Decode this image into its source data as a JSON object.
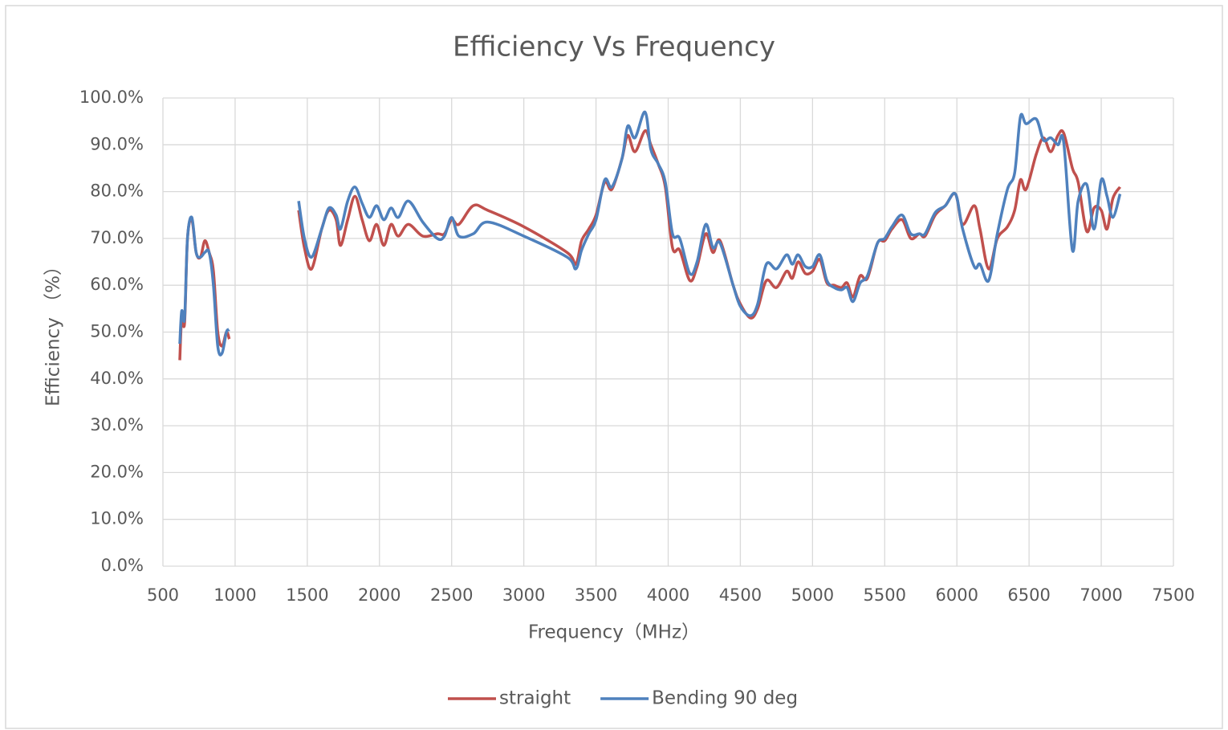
{
  "chart_data": {
    "type": "line",
    "title": "Efficiency Vs Frequency",
    "x_label": "Frequency（MHz）",
    "y_label": "Efficiency （%）",
    "xlim": [
      500,
      7500
    ],
    "xticks": [
      500,
      1000,
      1500,
      2000,
      2500,
      3000,
      3500,
      4000,
      4500,
      5000,
      5500,
      6000,
      6500,
      7000,
      7500
    ],
    "ylim": [
      0,
      100
    ],
    "yticks": [
      {
        "value": 0,
        "label": "0.0%"
      },
      {
        "value": 10,
        "label": "10.0%"
      },
      {
        "value": 20,
        "label": "20.0%"
      },
      {
        "value": 30,
        "label": "30.0%"
      },
      {
        "value": 40,
        "label": "40.0%"
      },
      {
        "value": 50,
        "label": "50.0%"
      },
      {
        "value": 60,
        "label": "60.0%"
      },
      {
        "value": 70,
        "label": "70.0%"
      },
      {
        "value": 80,
        "label": "80.0%"
      },
      {
        "value": 90,
        "label": "90.0%"
      },
      {
        "value": 100,
        "label": "100.0%"
      }
    ],
    "grid": true,
    "legend": "bottom",
    "x": [
      617,
      630,
      650,
      670,
      700,
      730,
      760,
      790,
      820,
      850,
      880,
      910,
      940,
      960,
      null,
      1440,
      1480,
      1530,
      1600,
      1650,
      1700,
      1730,
      1780,
      1830,
      1880,
      1930,
      1980,
      2030,
      2080,
      2130,
      2200,
      2300,
      2400,
      2450,
      2500,
      2550,
      2650,
      2750,
      3000,
      3300,
      3360,
      3400,
      3450,
      3500,
      3560,
      3610,
      3680,
      3720,
      3770,
      3840,
      3880,
      3930,
      3980,
      4030,
      4080,
      4150,
      4200,
      4260,
      4310,
      4360,
      4450,
      4500,
      4570,
      4620,
      4680,
      4750,
      4820,
      4860,
      4900,
      4950,
      5000,
      5050,
      5100,
      5150,
      5200,
      5240,
      5280,
      5330,
      5380,
      5450,
      5500,
      5550,
      5620,
      5680,
      5740,
      5780,
      5850,
      5920,
      5990,
      6040,
      6120,
      6160,
      6220,
      6280,
      6350,
      6400,
      6440,
      6480,
      6550,
      6600,
      6650,
      6700,
      6740,
      6800,
      6840,
      6900,
      6950,
      7000,
      7040,
      7080,
      7130
    ],
    "series": [
      {
        "name": "straight",
        "color": "#c0504d",
        "values": [
          44,
          53,
          52,
          70,
          74,
          67,
          66,
          69.5,
          67,
          63,
          50,
          47,
          50,
          48.5,
          null,
          76,
          68,
          63.5,
          72,
          76,
          74,
          68.5,
          74,
          79,
          74,
          69.5,
          73,
          68.5,
          73,
          70.5,
          73,
          70.5,
          71,
          71,
          74,
          73,
          77,
          76,
          72.5,
          67,
          64.5,
          69.5,
          72,
          75,
          82,
          80.5,
          87,
          92,
          88.5,
          93,
          90,
          86,
          81,
          68,
          67.5,
          61,
          64,
          71,
          67,
          69.5,
          60,
          56,
          53,
          55,
          61,
          59.5,
          63,
          61.5,
          65,
          62.5,
          63,
          65.5,
          60.5,
          60,
          59.5,
          60.5,
          57.5,
          62,
          61.5,
          69,
          69.5,
          72,
          74,
          70,
          71,
          70.5,
          75,
          77,
          79.5,
          73,
          77,
          72,
          63.5,
          70,
          72.5,
          76,
          82.5,
          80.5,
          88,
          91.5,
          88.5,
          92,
          92.5,
          85,
          82,
          71.5,
          76.5,
          76,
          72,
          78.5,
          81
        ]
      },
      {
        "name": "Bending 90 deg",
        "color": "#4f81bd",
        "values": [
          47.5,
          54.5,
          53,
          70,
          74.5,
          67,
          66,
          67,
          67,
          60,
          47,
          45.5,
          50,
          50.5,
          null,
          78,
          70,
          66,
          72,
          76.5,
          75,
          72,
          78,
          81,
          77.5,
          74.5,
          77,
          74,
          76.5,
          74.5,
          78,
          73.5,
          70,
          70.5,
          74.5,
          70.5,
          71,
          73.5,
          70.5,
          66,
          63.5,
          67.5,
          71,
          74,
          82.5,
          81,
          87,
          94,
          91.5,
          97,
          89,
          86,
          82,
          71,
          70,
          62.5,
          65,
          73,
          68,
          69,
          60,
          55.5,
          53.5,
          56,
          64.5,
          63.5,
          66.5,
          64.5,
          66.5,
          64,
          64,
          66.5,
          61,
          59.5,
          59,
          59.5,
          56.5,
          60.5,
          62,
          69,
          70,
          72.5,
          75,
          71,
          71,
          71,
          75.5,
          77,
          79.5,
          72,
          64,
          64.5,
          61,
          71,
          80.5,
          84,
          96,
          94.5,
          95.5,
          91,
          91.5,
          90,
          90.5,
          67.5,
          78,
          81.5,
          72,
          82.5,
          79,
          74.5,
          79.5
        ]
      }
    ]
  }
}
